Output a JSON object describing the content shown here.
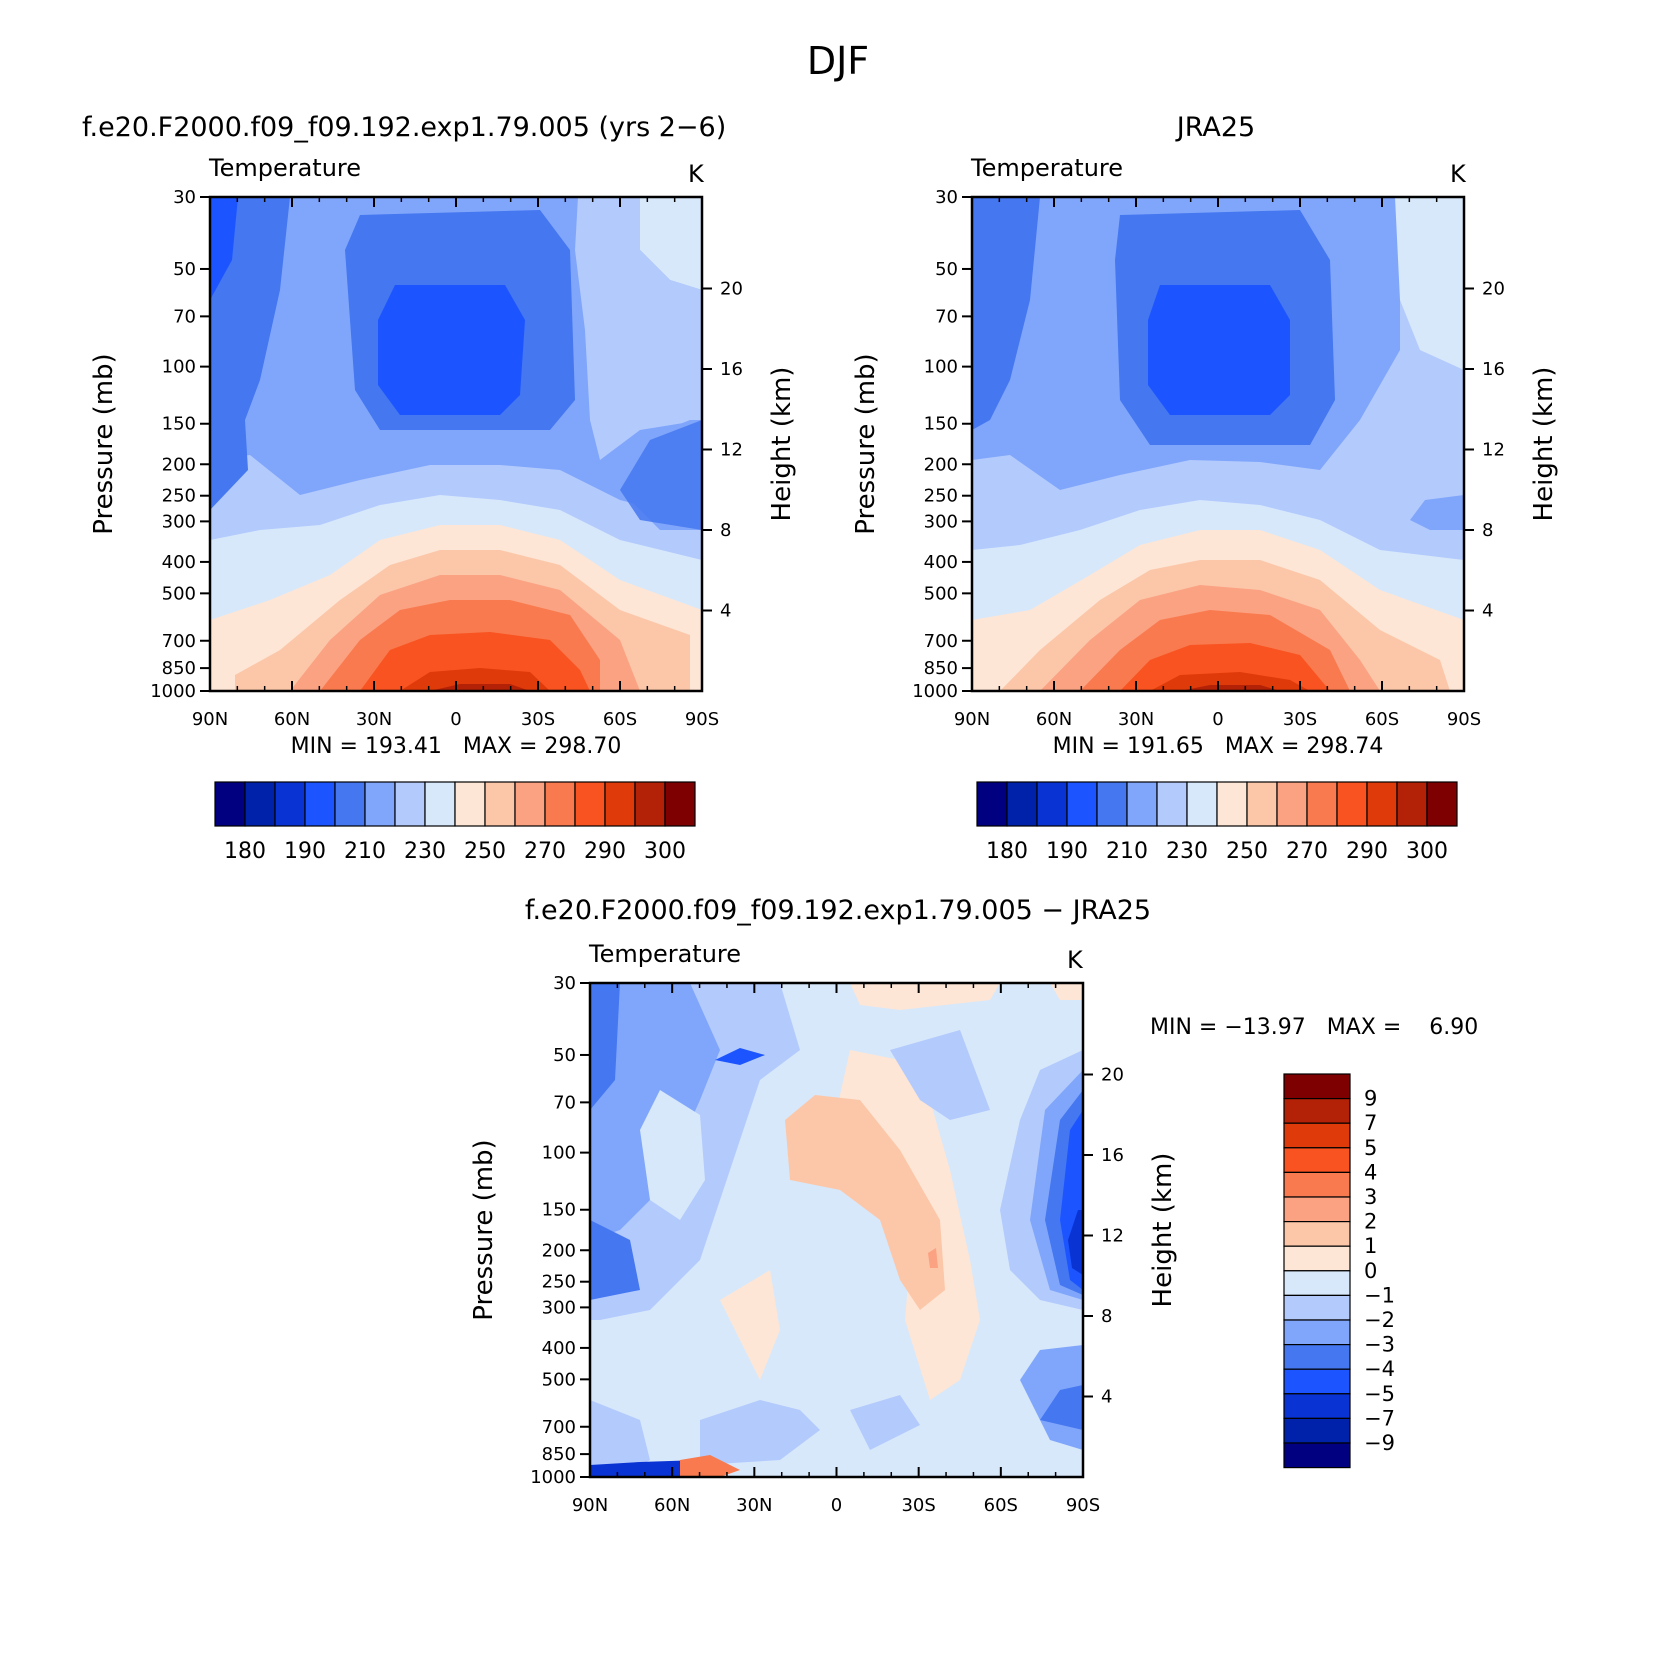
{
  "page_title": "DJF",
  "colors": {
    "temp_levels": [
      "#000080",
      "#0022aa",
      "#0a33d4",
      "#1c55ff",
      "#4477f0",
      "#80a6fb",
      "#b3cafc",
      "#d7e8fb",
      "#fde6d6",
      "#fcc7a9",
      "#fba282",
      "#f97a4e",
      "#f85320",
      "#df3a0a",
      "#b32207",
      "#7f0000"
    ],
    "diff_levels": [
      "#000080",
      "#0022aa",
      "#0a33d4",
      "#1c55ff",
      "#4477f0",
      "#80a6fb",
      "#b3cafc",
      "#d7e8fb",
      "#fde6d6",
      "#fcc7a9",
      "#fba282",
      "#f97a4e",
      "#f85320",
      "#df3a0a",
      "#b32207",
      "#7f0000"
    ]
  },
  "common": {
    "pressure_ticks": [
      "30",
      "50",
      "70",
      "100",
      "150",
      "200",
      "250",
      "300",
      "400",
      "500",
      "700",
      "850",
      "1000"
    ],
    "height_ticks": [
      "20",
      "16",
      "12",
      "8",
      "4"
    ],
    "lat_ticks": [
      "90N",
      "60N",
      "30N",
      "0",
      "30S",
      "60S",
      "90S"
    ],
    "y_label": "Pressure (mb)",
    "y2_label": "Height (km)"
  },
  "chart_data": [
    {
      "type": "heatmap",
      "title": "f.e20.F2000.f09_f09.192.exp1.79.005 (yrs 2−6)",
      "left_label": "Temperature",
      "right_label": "K",
      "stats": "MIN = 193.41   MAX = 298.70",
      "min": 193.41,
      "max": 298.7,
      "colorbar_labels": [
        "180",
        "190",
        "210",
        "230",
        "250",
        "270",
        "290",
        "300"
      ],
      "levels": [
        175,
        180,
        190,
        200,
        210,
        220,
        230,
        240,
        250,
        260,
        270,
        280,
        290,
        295,
        300
      ],
      "ylim_pressure_mb": [
        1000,
        30
      ],
      "xlim": [
        "90N",
        "90S"
      ]
    },
    {
      "type": "heatmap",
      "title": "JRA25",
      "left_label": "Temperature",
      "right_label": "K",
      "stats": "MIN = 191.65   MAX = 298.74",
      "min": 191.65,
      "max": 298.74,
      "colorbar_labels": [
        "180",
        "190",
        "210",
        "230",
        "250",
        "270",
        "290",
        "300"
      ],
      "levels": [
        175,
        180,
        190,
        200,
        210,
        220,
        230,
        240,
        250,
        260,
        270,
        280,
        290,
        295,
        300
      ],
      "ylim_pressure_mb": [
        1000,
        30
      ],
      "xlim": [
        "90N",
        "90S"
      ]
    },
    {
      "type": "heatmap",
      "title": "f.e20.F2000.f09_f09.192.exp1.79.005 − JRA25",
      "left_label": "Temperature",
      "right_label": "K",
      "stats": "MIN = −13.97   MAX =    6.90",
      "min": -13.97,
      "max": 6.9,
      "colorbar_labels": [
        "9",
        "7",
        "5",
        "4",
        "3",
        "2",
        "1",
        "0",
        "−1",
        "−2",
        "−3",
        "−4",
        "−5",
        "−7",
        "−9"
      ],
      "levels": [
        -9,
        -7,
        -5,
        -4,
        -3,
        -2,
        -1,
        0,
        1,
        2,
        3,
        4,
        5,
        7,
        9
      ],
      "ylim_pressure_mb": [
        1000,
        30
      ],
      "xlim": [
        "90N",
        "90S"
      ]
    }
  ]
}
